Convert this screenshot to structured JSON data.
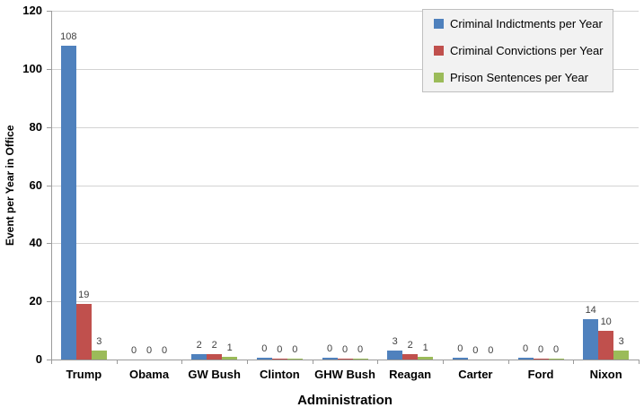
{
  "chart_data": {
    "type": "bar",
    "title": "",
    "xlabel": "Administration",
    "ylabel": "Event per Year in Office",
    "ylim": [
      0,
      120
    ],
    "ytick_step": 20,
    "yticks": [
      0,
      20,
      40,
      60,
      80,
      100,
      120
    ],
    "grid": true,
    "legend_position": "top-right",
    "data_labels_shown": true,
    "categories": [
      "Trump",
      "Obama",
      "GW Bush",
      "Clinton",
      "GHW Bush",
      "Reagan",
      "Carter",
      "Ford",
      "Nixon"
    ],
    "series": [
      {
        "name": "Criminal Indictments per Year",
        "color": "#4F81BD",
        "values": [
          108,
          0,
          2,
          0,
          0,
          3,
          0,
          0,
          14
        ],
        "bar_render_values": [
          108,
          0,
          2,
          0.5,
          0.5,
          3,
          0.5,
          0.5,
          14
        ]
      },
      {
        "name": "Criminal Convictions per Year",
        "color": "#C0504D",
        "values": [
          19,
          0,
          2,
          0,
          0,
          2,
          0,
          0,
          10
        ],
        "bar_render_values": [
          19,
          0,
          2,
          0.3,
          0.3,
          2,
          0.15,
          0.3,
          10
        ]
      },
      {
        "name": "Prison Sentences per Year",
        "color": "#9BBB59",
        "values": [
          3,
          0,
          1,
          0,
          0,
          1,
          0,
          0,
          3
        ],
        "bar_render_values": [
          3,
          0,
          1,
          0.3,
          0.3,
          1,
          0.15,
          0.3,
          3
        ]
      }
    ]
  },
  "colors": {
    "background": "#FFFFFF",
    "gridline": "#D3D3D3",
    "axis_line": "#9B9B9B",
    "text": "#000000",
    "data_label": "#3F3F3F",
    "legend_bg": "#F2F2F2",
    "legend_border": "#BFBFBF"
  }
}
